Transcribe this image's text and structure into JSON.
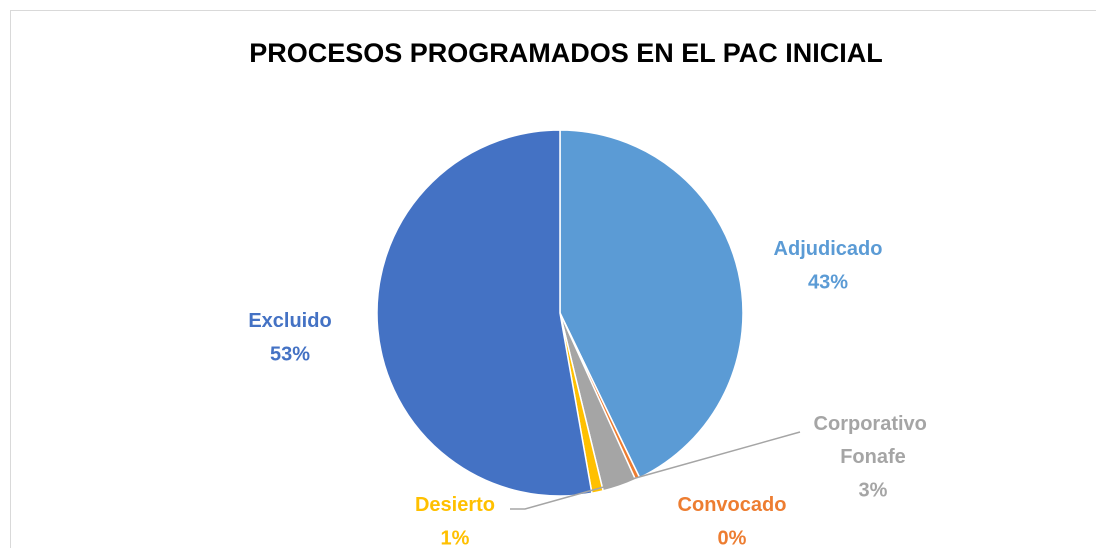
{
  "chart_data": {
    "type": "pie",
    "title": "PROCESOS PROGRAMADOS EN EL PAC INICIAL",
    "categories": [
      "Adjudicado",
      "Convocado",
      "Corporativo Fonafe",
      "Desierto",
      "Excluido"
    ],
    "values": [
      43,
      0.4,
      3,
      1,
      53
    ],
    "value_labels": [
      "43%",
      "0%",
      "3%",
      "1%",
      "53%"
    ],
    "colors": [
      "#5b9bd5",
      "#ed7d31",
      "#a5a5a5",
      "#ffc000",
      "#4472c4"
    ]
  }
}
